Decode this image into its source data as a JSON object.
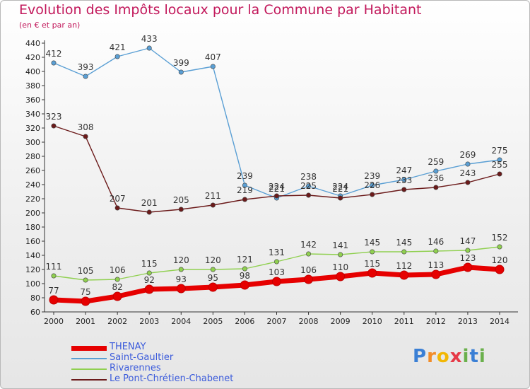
{
  "title": "Evolution des Impôts locaux pour la Commune par Habitant",
  "subtitle": "(en € et par an)",
  "logo": {
    "text": "Proxiti",
    "letters": [
      "P",
      "r",
      "o",
      "x",
      "i",
      "t",
      "i"
    ],
    "colors": [
      "#3a7fd5",
      "#f28c28",
      "#f2b705",
      "#e63946",
      "#6ab04c",
      "#3a7fd5",
      "#6ab04c"
    ]
  },
  "chart_data": {
    "type": "line",
    "x": [
      "2000",
      "2001",
      "2002",
      "2003",
      "2004",
      "2005",
      "2006",
      "2007",
      "2008",
      "2009",
      "2010",
      "2011",
      "2012",
      "2013",
      "2014"
    ],
    "ylim": [
      60,
      440
    ],
    "yticks": [
      60,
      80,
      100,
      120,
      140,
      160,
      180,
      200,
      220,
      240,
      260,
      280,
      300,
      320,
      340,
      360,
      380,
      400,
      420,
      440
    ],
    "grid": false,
    "legend_position": "bottom-left",
    "series": [
      {
        "name": "THENAY",
        "color": "#e60000",
        "values": [
          77,
          75,
          82,
          92,
          93,
          95,
          98,
          103,
          106,
          110,
          115,
          112,
          113,
          123,
          120
        ]
      },
      {
        "name": "Saint-Gaultier",
        "color": "#5a9fd4",
        "values": [
          412,
          393,
          421,
          433,
          399,
          407,
          239,
          221,
          238,
          224,
          239,
          247,
          259,
          269,
          275
        ]
      },
      {
        "name": "Rivarennes",
        "color": "#90d050",
        "values": [
          111,
          105,
          106,
          115,
          120,
          120,
          121,
          131,
          142,
          141,
          145,
          145,
          146,
          147,
          152
        ]
      },
      {
        "name": "Le Pont-Chrétien-Chabenet",
        "color": "#6b1a1a",
        "values": [
          323,
          308,
          207,
          201,
          205,
          211,
          219,
          224,
          225,
          221,
          226,
          233,
          236,
          243,
          255
        ]
      }
    ]
  }
}
